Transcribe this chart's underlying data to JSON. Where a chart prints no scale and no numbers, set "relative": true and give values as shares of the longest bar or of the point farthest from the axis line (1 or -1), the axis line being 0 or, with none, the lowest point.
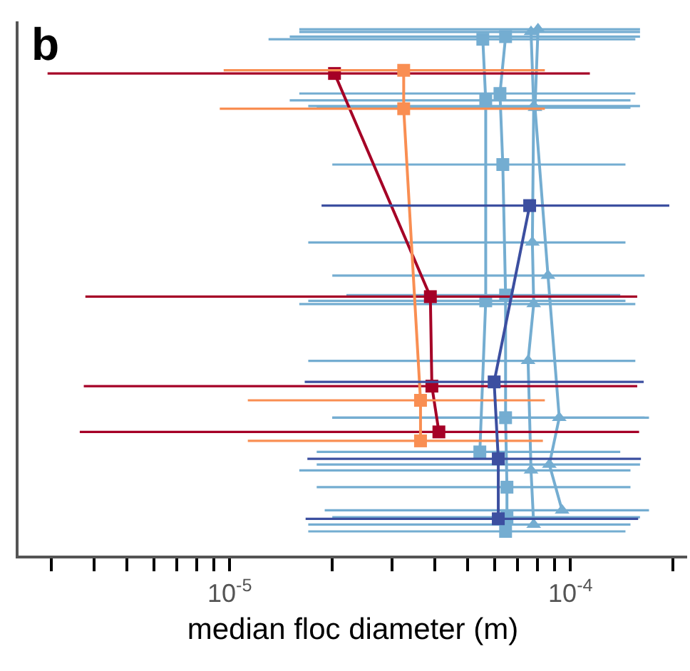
{
  "chart_data": {
    "type": "line",
    "relative": true,
    "log": "x",
    "grid": false,
    "annotations": [
      "b"
    ],
    "xlabel": "median floc diameter (m)",
    "xlim": [
      2.4e-06,
      0.00022
    ],
    "xticks": [
      {
        "value": 3e-06,
        "label": null
      },
      {
        "value": 4e-06,
        "label": null
      },
      {
        "value": 5e-06,
        "label": null
      },
      {
        "value": 6e-06,
        "label": null
      },
      {
        "value": 7e-06,
        "label": null
      },
      {
        "value": 8e-06,
        "label": null
      },
      {
        "value": 9e-06,
        "label": null
      },
      {
        "value": 1e-05,
        "label": "10$^{-5}$"
      },
      {
        "value": 2e-05,
        "label": null
      },
      {
        "value": 3e-05,
        "label": null
      },
      {
        "value": 4e-05,
        "label": null
      },
      {
        "value": 5e-05,
        "label": null
      },
      {
        "value": 6e-05,
        "label": null
      },
      {
        "value": 7e-05,
        "label": null
      },
      {
        "value": 8e-05,
        "label": null
      },
      {
        "value": 9e-05,
        "label": null
      },
      {
        "value": 0.0001,
        "label": "10$^{-4}$"
      },
      {
        "value": 0.0002,
        "label": null
      }
    ],
    "series": [
      {
        "color": "#74add1",
        "marker": "square",
        "x": [
          5.53e-05,
          5.64e-05,
          5.64e-05,
          5.42e-05
        ],
        "values": [
          0.981,
          0.865,
          0.484,
          0.197
        ],
        "xerrors": [
          [
            1.3e-05,
            0.000155
          ],
          [
            1.5e-05,
            0.00015
          ],
          [
            1.7e-05,
            0.000145
          ],
          [
            1.8e-05,
            0.00014
          ]
        ]
      },
      {
        "color": "#74add1",
        "marker": "square",
        "x": [
          6.45e-05,
          6.21e-05,
          6.33e-05,
          6.45e-05,
          6.45e-05,
          6.51e-05,
          6.51e-05,
          6.45e-05
        ],
        "values": [
          0.986,
          0.878,
          0.743,
          0.495,
          0.262,
          0.13,
          0.073,
          0.046
        ],
        "xerrors": [
          [
            1.5e-05,
            0.00016
          ],
          [
            1.6e-05,
            0.000155
          ],
          [
            2e-05,
            0.000145
          ],
          [
            2.2e-05,
            0.00014
          ],
          [
            2e-05,
            0.000165
          ],
          [
            1.8e-05,
            0.00015
          ],
          [
            2e-05,
            0.00016
          ],
          [
            1.7e-05,
            0.000145
          ]
        ]
      },
      {
        "color": "#74add1",
        "marker": "triangle",
        "x": [
          7.66e-05,
          7.8e-05,
          7.73e-05,
          7.8e-05,
          7.51e-05,
          7.66e-05,
          7.8e-05
        ],
        "values": [
          0.995,
          0.854,
          0.595,
          0.478,
          0.37,
          0.162,
          0.059
        ],
        "xerrors": [
          [
            1.6e-05,
            0.00016
          ],
          [
            1.7e-05,
            0.00016
          ],
          [
            1.7e-05,
            0.000145
          ],
          [
            1.6e-05,
            0.000155
          ],
          [
            1.7e-05,
            0.000155
          ],
          [
            1.6e-05,
            0.00015
          ],
          [
            1.7e-05,
            0.00015
          ]
        ]
      },
      {
        "color": "#74add1",
        "marker": "triangle",
        "x": [
          8.03e-05,
          7.87e-05,
          8.59e-05,
          9.27e-05,
          8.67e-05,
          9.45e-05
        ],
        "values": [
          1.0,
          0.851,
          0.532,
          0.262,
          0.173,
          0.086
        ],
        "xerrors": [
          [
            1.6e-05,
            0.00016
          ],
          [
            1.8e-05,
            0.00015
          ],
          [
            2e-05,
            0.000165
          ],
          [
            2e-05,
            0.00017
          ],
          [
            1.8e-05,
            0.00016
          ],
          [
            1.9e-05,
            0.00017
          ]
        ]
      },
      {
        "color": "#a50026",
        "marker": "square",
        "x": [
          2.03e-05,
          3.88e-05,
          3.92e-05,
          4.11e-05
        ],
        "values": [
          0.916,
          0.492,
          0.322,
          0.235
        ],
        "xerrors": [
          [
            2.92e-06,
            0.000114
          ],
          [
            3.77e-06,
            0.000157
          ],
          [
            3.73e-06,
            0.000157
          ],
          [
            3.63e-06,
            0.000159
          ]
        ]
      },
      {
        "color": "#f98e52",
        "marker": "square",
        "x": [
          3.24e-05,
          3.24e-05,
          3.63e-05,
          3.63e-05
        ],
        "values": [
          0.922,
          0.849,
          0.295,
          0.218
        ],
        "xerrors": [
          [
            9.6e-06,
            8.41e-05
          ],
          [
            9.35e-06,
            8.41e-05
          ],
          [
            1.13e-05,
            8.41e-05
          ],
          [
            1.13e-05,
            8.3e-05
          ]
        ]
      },
      {
        "color": "#3c4fa0",
        "marker": "square",
        "x": [
          7.59e-05,
          5.97e-05,
          6.14e-05,
          6.14e-05
        ],
        "values": [
          0.665,
          0.33,
          0.184,
          0.07
        ],
        "xerrors": [
          [
            1.86e-05,
            0.000195
          ],
          [
            1.66e-05,
            0.000164
          ],
          [
            1.69e-05,
            0.000161
          ],
          [
            1.67e-05,
            0.000158
          ]
        ]
      }
    ]
  }
}
